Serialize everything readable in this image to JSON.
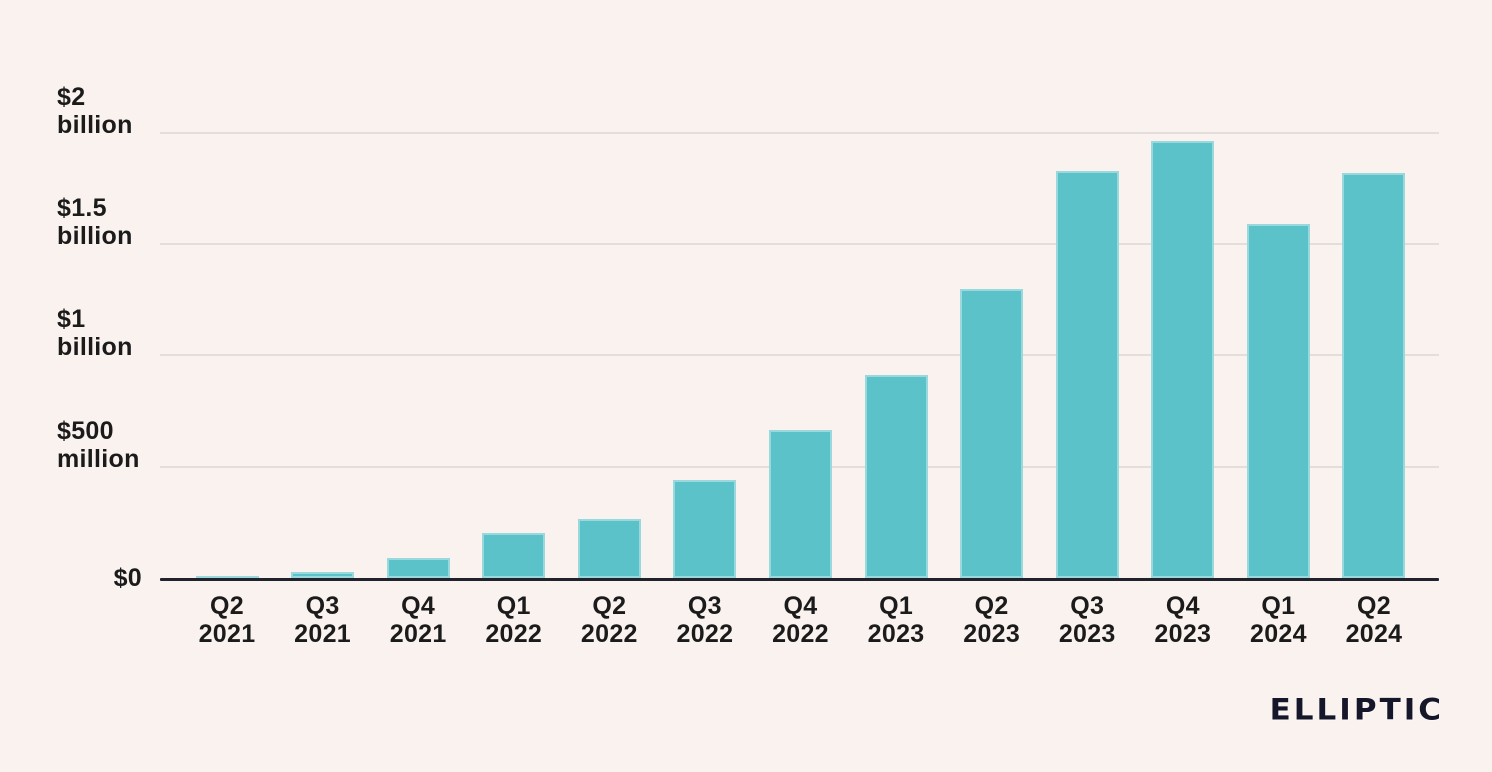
{
  "branding": {
    "logo_text": "ELLIPTIC"
  },
  "colors": {
    "background": "#FAF2EF",
    "bar_fill": "#5BC2C9",
    "bar_edge": "#BFE5E8",
    "gridline": "#E3DEDC",
    "axis_line": "#20222C",
    "text": "#1B1B1B",
    "logo": "#16162A"
  },
  "chart_data": {
    "type": "bar",
    "title": "",
    "xlabel": "",
    "ylabel": "",
    "ylim": [
      0,
      2000
    ],
    "grid": true,
    "legend": "none",
    "unit": "USD millions",
    "categories": [
      "Q2 2021",
      "Q3 2021",
      "Q4 2021",
      "Q1 2022",
      "Q2 2022",
      "Q3 2022",
      "Q4 2022",
      "Q1 2023",
      "Q2 2023",
      "Q3 2023",
      "Q4 2023",
      "Q1 2024",
      "Q2 2024"
    ],
    "values": [
      10,
      25,
      90,
      200,
      265,
      440,
      665,
      910,
      1300,
      1830,
      1965,
      1590,
      1820
    ],
    "y_ticks": [
      {
        "value": 2000,
        "label": "$2 billion"
      },
      {
        "value": 1500,
        "label": "$1.5 billion"
      },
      {
        "value": 1000,
        "label": "$1 billion"
      },
      {
        "value": 500,
        "label": "$500 million"
      },
      {
        "value": 0,
        "label": "$0"
      }
    ]
  }
}
